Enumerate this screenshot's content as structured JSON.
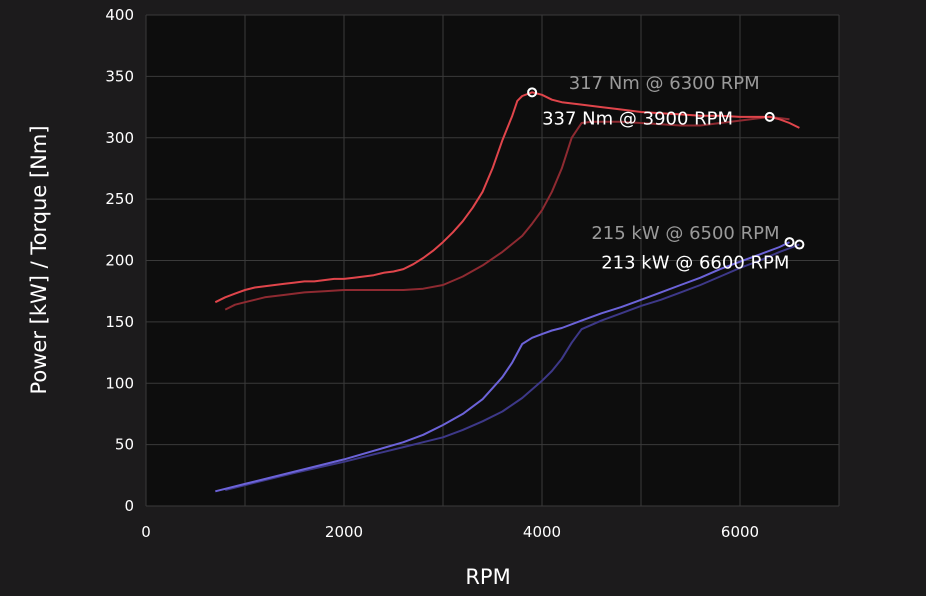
{
  "chart_data": {
    "type": "line",
    "xlabel": "RPM",
    "ylabel": "Power [kW] / Torque [Nm]",
    "xlim": [
      0,
      7000
    ],
    "ylim": [
      0,
      400
    ],
    "xticks": [
      0,
      2000,
      4000,
      6000
    ],
    "yticks": [
      0,
      50,
      100,
      150,
      200,
      250,
      300,
      350,
      400
    ],
    "grid": true,
    "colors": {
      "background": "#1c1b1c",
      "plot_background": "#0d0d0d",
      "grid": "#3a3a3a",
      "torque_primary": "#e0454b",
      "torque_secondary": "#8e2a31",
      "power_primary": "#6c63d9",
      "power_secondary": "#3d3888",
      "annotation_primary": "#ffffff",
      "annotation_secondary": "#9a9a9a"
    },
    "series": [
      {
        "role": "torque_primary",
        "x": [
          700,
          800,
          900,
          1000,
          1100,
          1200,
          1300,
          1400,
          1500,
          1600,
          1700,
          1800,
          1900,
          2000,
          2100,
          2200,
          2300,
          2400,
          2500,
          2600,
          2700,
          2800,
          2900,
          3000,
          3100,
          3200,
          3300,
          3400,
          3500,
          3600,
          3700,
          3750,
          3800,
          3900,
          4000,
          4100,
          4200,
          4400,
          4600,
          4800,
          5000,
          5200,
          5400,
          5600,
          5800,
          6000,
          6200,
          6300,
          6400,
          6500,
          6600
        ],
        "values": [
          166,
          170,
          173,
          176,
          178,
          179,
          180,
          181,
          182,
          183,
          183,
          184,
          185,
          185,
          186,
          187,
          188,
          190,
          191,
          193,
          197,
          202,
          208,
          215,
          223,
          232,
          243,
          256,
          275,
          298,
          318,
          330,
          334,
          337,
          335,
          331,
          329,
          327,
          325,
          323,
          321,
          320,
          319,
          318,
          318,
          317,
          317,
          317,
          315,
          312,
          308
        ]
      },
      {
        "role": "torque_secondary",
        "x": [
          800,
          900,
          1000,
          1200,
          1400,
          1600,
          1800,
          2000,
          2200,
          2400,
          2600,
          2800,
          3000,
          3200,
          3400,
          3600,
          3800,
          3900,
          4000,
          4100,
          4200,
          4300,
          4400,
          4500,
          4600,
          4800,
          5000,
          5200,
          5400,
          5600,
          5800,
          6000,
          6200,
          6300,
          6400,
          6500
        ],
        "values": [
          160,
          164,
          166,
          170,
          172,
          174,
          175,
          176,
          176,
          176,
          176,
          177,
          180,
          187,
          196,
          207,
          220,
          230,
          241,
          256,
          275,
          300,
          312,
          313,
          313,
          313,
          312,
          311,
          310,
          310,
          312,
          314,
          316,
          317,
          316,
          315
        ]
      },
      {
        "role": "power_primary",
        "x": [
          700,
          1000,
          1500,
          2000,
          2300,
          2600,
          2800,
          3000,
          3200,
          3400,
          3500,
          3600,
          3700,
          3800,
          3900,
          4000,
          4100,
          4200,
          4400,
          4600,
          4800,
          5000,
          5200,
          5400,
          5600,
          5800,
          6000,
          6200,
          6400,
          6500
        ],
        "values": [
          12,
          18,
          28,
          38,
          45,
          52,
          58,
          66,
          75,
          87,
          96,
          105,
          117,
          132,
          137,
          140,
          143,
          145,
          151,
          157,
          162,
          168,
          174,
          180,
          186,
          193,
          199,
          205,
          211,
          215
        ]
      },
      {
        "role": "power_secondary",
        "x": [
          800,
          1000,
          1500,
          2000,
          2300,
          2600,
          2800,
          3000,
          3200,
          3400,
          3600,
          3800,
          3900,
          4000,
          4100,
          4200,
          4300,
          4400,
          4600,
          4800,
          5000,
          5200,
          5400,
          5600,
          5800,
          6000,
          6200,
          6400,
          6600
        ],
        "values": [
          13,
          17,
          27,
          36,
          42,
          48,
          52,
          56,
          62,
          69,
          77,
          88,
          95,
          102,
          110,
          120,
          133,
          144,
          151,
          157,
          163,
          168,
          174,
          180,
          187,
          194,
          200,
          207,
          213
        ]
      }
    ],
    "annotations": [
      {
        "text": "337 Nm @ 3900 RPM",
        "x": 3900,
        "y": 337,
        "role": "annotation_primary"
      },
      {
        "text": "317 Nm @ 6300 RPM",
        "x": 6300,
        "y": 317,
        "role": "annotation_secondary"
      },
      {
        "text": "215 kW @ 6500 RPM",
        "x": 6500,
        "y": 215,
        "role": "annotation_secondary"
      },
      {
        "text": "213 kW @ 6600 RPM",
        "x": 6600,
        "y": 213,
        "role": "annotation_primary"
      }
    ]
  }
}
